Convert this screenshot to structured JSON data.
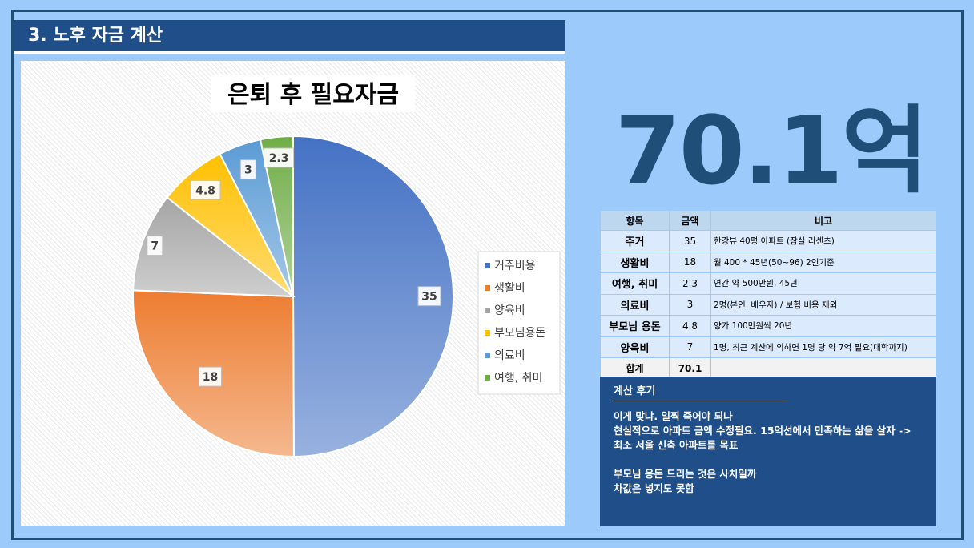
{
  "header": {
    "title": "3. 노후 자금 계산"
  },
  "summary": {
    "total_display": "70.1억"
  },
  "chart_data": {
    "type": "pie",
    "title": "은퇴 후 필요자금",
    "categories": [
      "거주비용",
      "생활비",
      "양육비",
      "부모님용돈",
      "의료비",
      "여행, 취미"
    ],
    "values": [
      35,
      18,
      7,
      4.8,
      3,
      2.3
    ],
    "colors": [
      "#4472c4",
      "#ed7d31",
      "#a5a5a5",
      "#ffc000",
      "#5b9bd5",
      "#70ad47"
    ],
    "legend_position": "right"
  },
  "table": {
    "headers": [
      "항목",
      "금액",
      "비고"
    ],
    "rows": [
      {
        "item": "주거",
        "amount": "35",
        "note": "한강뷰 40평 아파트 (잠실 리센츠)"
      },
      {
        "item": "생활비",
        "amount": "18",
        "note": "월 400 * 45년(50~96) 2인기준"
      },
      {
        "item": "여행, 취미",
        "amount": "2.3",
        "note": "연간 약 500만원, 45년"
      },
      {
        "item": "의료비",
        "amount": "3",
        "note": "2명(본인, 배우자) / 보험 비용 제외"
      },
      {
        "item": "부모님 용돈",
        "amount": "4.8",
        "note": "양가 100만원씩 20년"
      },
      {
        "item": "양육비",
        "amount": "7",
        "note": "1명, 최근 계산에 의하면 1명 당 약 7억 필요(대학까지)"
      }
    ],
    "total_label": "합계",
    "total_amount": "70.1"
  },
  "review": {
    "title": "계산 후기",
    "paragraphs": [
      "이게 맞냐. 일찍 죽어야 되나\n현실적으로 아파트 금액 수정필요. 15억선에서 만족하는 삶을 살자 -> 최소 서울 신축 아파트를 목표",
      "부모님 용돈 드리는 것은 사치일까\n차값은 넣지도 못함"
    ]
  }
}
